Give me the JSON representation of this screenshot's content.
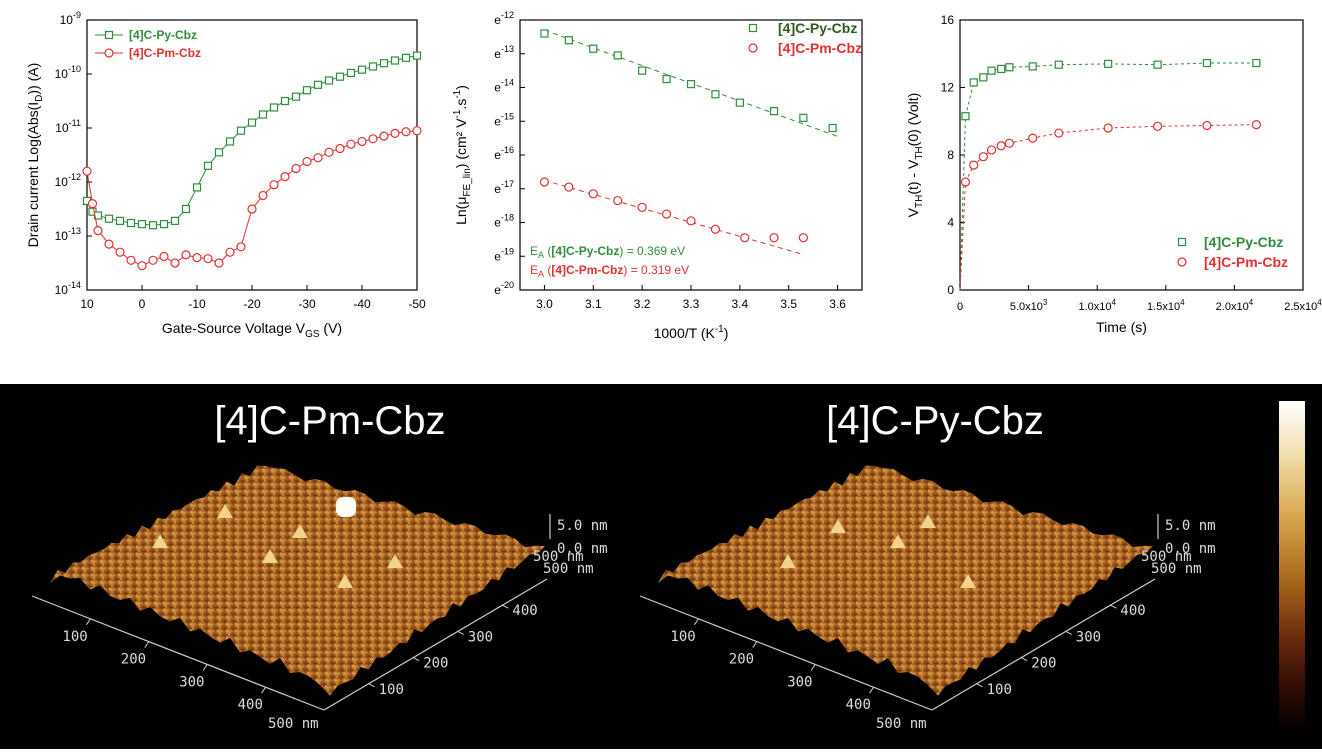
{
  "colors": {
    "green": "#2e8b3c",
    "red": "#e03030",
    "axis": "#000000"
  },
  "chart_data": [
    {
      "id": "transfer",
      "type": "line",
      "xlabel": "Gate-Source Voltage V",
      "xlabel_sub": "GS",
      "xlabel_unit": " (V)",
      "ylabel_parts": [
        "Drain current Log(Abs(I",
        "D",
        ")) (A)"
      ],
      "xlim": [
        10,
        -50
      ],
      "x_ticks": [
        10,
        0,
        -10,
        -20,
        -30,
        -40,
        -50
      ],
      "x_tick_labels": [
        "10",
        "0",
        "-10",
        "-20",
        "-30",
        "-40",
        "-50"
      ],
      "yscale": "log",
      "ylim_exp": [
        -14,
        -9
      ],
      "y_ticks_exp": [
        -14,
        -13,
        -12,
        -11,
        -10,
        -9
      ],
      "legend_position": "top-left",
      "series": [
        {
          "name": "[4]C-Py-Cbz",
          "color": "#2e8b3c",
          "marker": "square",
          "line": "solid",
          "x": [
            10,
            9,
            8,
            6,
            4,
            2,
            0,
            -2,
            -4,
            -6,
            -8,
            -10,
            -12,
            -14,
            -16,
            -18,
            -20,
            -22,
            -24,
            -26,
            -28,
            -30,
            -32,
            -34,
            -36,
            -38,
            -40,
            -42,
            -44,
            -46,
            -48,
            -50
          ],
          "y_exp": [
            -12.35,
            -12.55,
            -12.62,
            -12.68,
            -12.72,
            -12.76,
            -12.78,
            -12.8,
            -12.78,
            -12.72,
            -12.5,
            -12.1,
            -11.7,
            -11.45,
            -11.25,
            -11.05,
            -10.9,
            -10.75,
            -10.62,
            -10.5,
            -10.42,
            -10.3,
            -10.2,
            -10.12,
            -10.05,
            -9.98,
            -9.92,
            -9.86,
            -9.8,
            -9.75,
            -9.7,
            -9.66
          ]
        },
        {
          "name": "[4]C-Pm-Cbz",
          "color": "#e03030",
          "marker": "circle",
          "line": "solid",
          "x": [
            10,
            9,
            8,
            6,
            4,
            2,
            0,
            -2,
            -4,
            -6,
            -8,
            -10,
            -12,
            -14,
            -16,
            -18,
            -20,
            -22,
            -24,
            -26,
            -28,
            -30,
            -32,
            -34,
            -36,
            -38,
            -40,
            -42,
            -44,
            -46,
            -48,
            -50
          ],
          "y_exp": [
            -11.8,
            -12.4,
            -12.9,
            -13.15,
            -13.3,
            -13.45,
            -13.55,
            -13.45,
            -13.38,
            -13.5,
            -13.35,
            -13.4,
            -13.42,
            -13.5,
            -13.3,
            -13.2,
            -12.5,
            -12.25,
            -12.05,
            -11.9,
            -11.75,
            -11.62,
            -11.55,
            -11.45,
            -11.38,
            -11.3,
            -11.25,
            -11.2,
            -11.15,
            -11.1,
            -11.07,
            -11.05
          ]
        }
      ]
    },
    {
      "id": "arrhenius",
      "type": "scatter",
      "xlabel": "1000/T (K",
      "xlabel_sup": "-1",
      "xlabel_end": ")",
      "ylabel_parts": [
        "Ln(μ",
        "FE_lin",
        ") (cm² V",
        "-1",
        ".s",
        "-1",
        ")"
      ],
      "xlim": [
        2.95,
        3.65
      ],
      "x_ticks": [
        3.0,
        3.1,
        3.2,
        3.3,
        3.4,
        3.5,
        3.6
      ],
      "x_tick_labels": [
        "3.0",
        "3.1",
        "3.2",
        "3.3",
        "3.4",
        "3.5",
        "3.6"
      ],
      "ylim_exp": [
        -20,
        -12
      ],
      "y_ticks_exp": [
        -20,
        -19,
        -18,
        -17,
        -16,
        -15,
        -14,
        -13,
        -12
      ],
      "legend_position": "top-right",
      "annotations": [
        {
          "prefix": "E",
          "sub": "A",
          "open": " (",
          "bold": "[4]C-Py-Cbz",
          "close": ") = 0.369 eV",
          "color": "#2e8b3c"
        },
        {
          "prefix": "E",
          "sub": "A",
          "open": " (",
          "bold": "[4]C-Pm-Cbz",
          "close": ") = 0.319 eV",
          "color": "#e03030"
        }
      ],
      "series": [
        {
          "name": "[4]C-Py-Cbz",
          "color": "#2e8b3c",
          "marker": "square",
          "x": [
            3.0,
            3.05,
            3.1,
            3.15,
            3.2,
            3.25,
            3.3,
            3.35,
            3.4,
            3.47,
            3.53,
            3.59
          ],
          "y_exp": [
            -12.4,
            -12.6,
            -12.85,
            -13.05,
            -13.5,
            -13.75,
            -13.9,
            -14.2,
            -14.45,
            -14.7,
            -14.9,
            -15.2
          ],
          "fit": [
            [
              3.0,
              -12.3
            ],
            [
              3.6,
              -15.45
            ]
          ]
        },
        {
          "name": "[4]C-Pm-Cbz",
          "color": "#e03030",
          "marker": "circle",
          "x": [
            3.0,
            3.05,
            3.1,
            3.15,
            3.2,
            3.25,
            3.3,
            3.35,
            3.41,
            3.47,
            3.53
          ],
          "y_exp": [
            -16.8,
            -16.95,
            -17.15,
            -17.35,
            -17.55,
            -17.75,
            -17.95,
            -18.2,
            -18.45,
            -18.45,
            -18.45
          ],
          "fit": [
            [
              3.0,
              -16.75
            ],
            [
              3.53,
              -18.95
            ]
          ]
        }
      ]
    },
    {
      "id": "threshold",
      "type": "scatter",
      "xlabel": "Time (s)",
      "ylabel_parts": [
        "V",
        "TH",
        "(t) - V",
        "TH",
        "(0) (Volt)"
      ],
      "xlim": [
        0,
        25000
      ],
      "x_ticks": [
        0,
        5000,
        10000,
        15000,
        20000,
        25000
      ],
      "x_tick_labels": [
        [
          "0",
          ""
        ],
        [
          "5.0x10",
          "3"
        ],
        [
          "1.0x10",
          "4"
        ],
        [
          "1.5x10",
          "4"
        ],
        [
          "2.0x10",
          "4"
        ],
        [
          "2.5x10",
          "4"
        ]
      ],
      "ylim": [
        0,
        16
      ],
      "y_ticks": [
        0,
        4,
        8,
        12,
        16
      ],
      "legend_position": "bottom-right",
      "series": [
        {
          "name": "[4]C-Py-Cbz",
          "color": "#2e8b3c",
          "marker": "square",
          "x": [
            0,
            400,
            1000,
            1700,
            2300,
            3000,
            3600,
            5300,
            7200,
            10800,
            14400,
            18000,
            21600
          ],
          "y": [
            0,
            10.3,
            12.3,
            12.6,
            13.0,
            13.1,
            13.2,
            13.25,
            13.35,
            13.4,
            13.35,
            13.45,
            13.45
          ]
        },
        {
          "name": "[4]C-Pm-Cbz",
          "color": "#e03030",
          "marker": "circle",
          "x": [
            0,
            400,
            1000,
            1700,
            2300,
            3000,
            3600,
            5300,
            7200,
            10800,
            14400,
            18000,
            21600
          ],
          "y": [
            0,
            6.4,
            7.4,
            7.9,
            8.3,
            8.55,
            8.7,
            9.0,
            9.3,
            9.6,
            9.7,
            9.75,
            9.8
          ]
        }
      ]
    }
  ],
  "afm": {
    "left_title": "[4]C-Pm-Cbz",
    "right_title": "[4]C-Py-Cbz",
    "z_top": "5.0 nm",
    "z_zero": "0.0 nm",
    "y_edge_a": "500 nm",
    "y_edge_b": "500 nm",
    "x_ticks": [
      "100",
      "200",
      "300",
      "400"
    ],
    "x_end": "500 nm",
    "y_ticks": [
      "400",
      "300",
      "200",
      "100"
    ],
    "colorbar_stops": [
      "#ffffff",
      "#f3e2b2",
      "#d8a74e",
      "#a8661a",
      "#6b2c0d",
      "#2d0a03",
      "#050100"
    ]
  }
}
